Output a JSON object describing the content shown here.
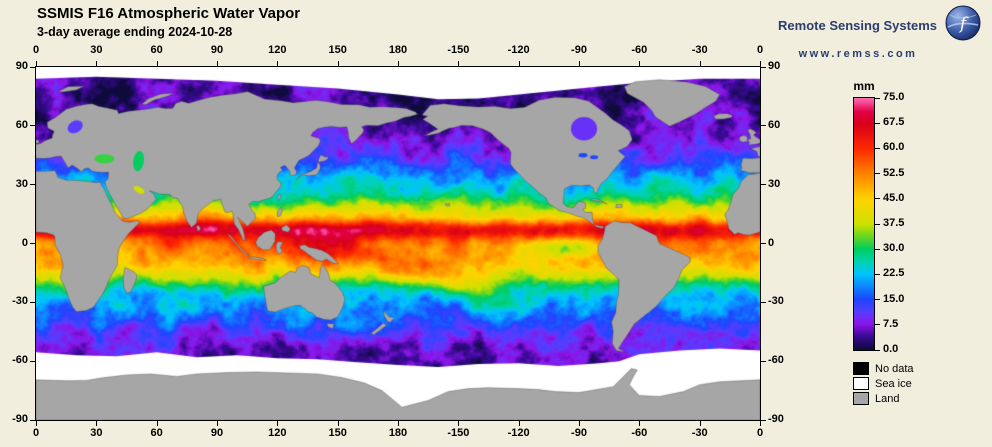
{
  "header": {
    "title": "SSMIS F16 Atmospheric Water Vapor",
    "subtitle": "3-day average ending 2024-10-28"
  },
  "branding": {
    "name": "Remote Sensing Systems",
    "url": "www.remss.com"
  },
  "map": {
    "lon_ticks": [
      "0",
      "30",
      "60",
      "90",
      "120",
      "150",
      "180",
      "-150",
      "-120",
      "-90",
      "-60",
      "-30",
      "0"
    ],
    "lat_ticks": [
      "90",
      "60",
      "30",
      "0",
      "-30",
      "-60",
      "-90"
    ]
  },
  "colorbar": {
    "unit": "mm",
    "min": 0,
    "max": 75,
    "tick_labels": [
      "75.0",
      "67.5",
      "60.0",
      "52.5",
      "45.0",
      "37.5",
      "30.0",
      "22.5",
      "15.0",
      "7.5",
      "0.0"
    ],
    "scale_stops": [
      {
        "v": 0.0,
        "c": "#0f0a3c"
      },
      {
        "v": 4.0,
        "c": "#3a0a96"
      },
      {
        "v": 7.5,
        "c": "#8c14e6"
      },
      {
        "v": 11.0,
        "c": "#5a3cff"
      },
      {
        "v": 15.0,
        "c": "#1e46ff"
      },
      {
        "v": 22.5,
        "c": "#00c3ff"
      },
      {
        "v": 26.0,
        "c": "#00d2b4"
      },
      {
        "v": 30.0,
        "c": "#00cd5f"
      },
      {
        "v": 34.0,
        "c": "#6ed71e"
      },
      {
        "v": 37.5,
        "c": "#cde100"
      },
      {
        "v": 45.0,
        "c": "#ffd200"
      },
      {
        "v": 52.5,
        "c": "#ff8200"
      },
      {
        "v": 60.0,
        "c": "#ff2800"
      },
      {
        "v": 67.5,
        "c": "#d70019"
      },
      {
        "v": 71.0,
        "c": "#e10046"
      },
      {
        "v": 75.0,
        "c": "#ff69b4"
      }
    ]
  },
  "legend": {
    "items": [
      {
        "label": "No data",
        "color": "#000000"
      },
      {
        "label": "Sea ice",
        "color": "#ffffff"
      },
      {
        "label": "Land",
        "color": "#a6a6a6"
      }
    ]
  },
  "colors": {
    "background": "#f2eedd",
    "brand_text": "#2c3d6e"
  }
}
